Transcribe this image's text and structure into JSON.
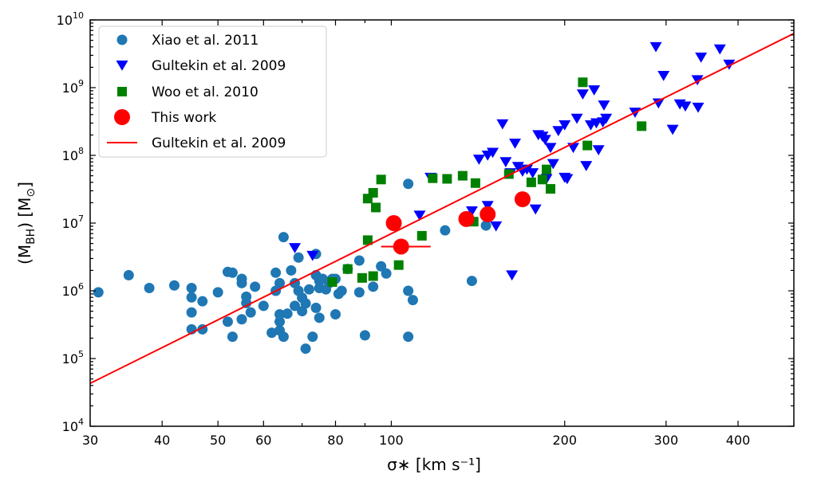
{
  "chart_data": {
    "type": "scatter",
    "xlabel": "σ∗ [km s⁻¹]",
    "ylabel": "(MBH) [M⊙]",
    "xscale": "log",
    "yscale": "log",
    "xlim": [
      30,
      500
    ],
    "ylim": [
      10000,
      10000000000
    ],
    "xticks": [
      30,
      40,
      50,
      60,
      80,
      100,
      200,
      300,
      400
    ],
    "xtick_labels": [
      "30",
      "40",
      "50",
      "60",
      "80",
      "100",
      "200",
      "300",
      "400"
    ],
    "yticks": [
      10000,
      100000,
      1000000,
      10000000,
      100000000,
      1000000000,
      10000000000
    ],
    "ytick_labels": [
      {
        "base": "10",
        "exp": "4"
      },
      {
        "base": "10",
        "exp": "5"
      },
      {
        "base": "10",
        "exp": "6"
      },
      {
        "base": "10",
        "exp": "7"
      },
      {
        "base": "10",
        "exp": "8"
      },
      {
        "base": "10",
        "exp": "9"
      },
      {
        "base": "10",
        "exp": "10"
      }
    ],
    "legend_position": "top-left",
    "series": [
      {
        "name": "Xiao et al. 2011",
        "marker": "circle",
        "color": "#1f77b4",
        "points": [
          [
            31,
            950000
          ],
          [
            35,
            1700000
          ],
          [
            38,
            1100000
          ],
          [
            42,
            1200000
          ],
          [
            45,
            1100000
          ],
          [
            45,
            800000
          ],
          [
            45,
            480000
          ],
          [
            45,
            270000
          ],
          [
            47,
            700000
          ],
          [
            47,
            270000
          ],
          [
            50,
            950000
          ],
          [
            52,
            1900000
          ],
          [
            52,
            350000
          ],
          [
            53,
            1850000
          ],
          [
            53,
            210000
          ],
          [
            55,
            1500000
          ],
          [
            55,
            1300000
          ],
          [
            55,
            380000
          ],
          [
            56,
            820000
          ],
          [
            56,
            660000
          ],
          [
            57,
            480000
          ],
          [
            58,
            1150000
          ],
          [
            60,
            600000
          ],
          [
            62,
            240000
          ],
          [
            63,
            1850000
          ],
          [
            63,
            1000000
          ],
          [
            64,
            1300000
          ],
          [
            64,
            450000
          ],
          [
            64,
            260000
          ],
          [
            64,
            350000
          ],
          [
            65,
            6200000
          ],
          [
            65,
            210000
          ],
          [
            66,
            460000
          ],
          [
            67,
            2000000
          ],
          [
            68,
            1300000
          ],
          [
            68,
            600000
          ],
          [
            69,
            3100000
          ],
          [
            69,
            1000000
          ],
          [
            70,
            790000
          ],
          [
            70,
            500000
          ],
          [
            71,
            650000
          ],
          [
            71,
            140000
          ],
          [
            72,
            1050000
          ],
          [
            73,
            210000
          ],
          [
            74,
            1700000
          ],
          [
            74,
            560000
          ],
          [
            74,
            3500000
          ],
          [
            75,
            1400000
          ],
          [
            75,
            1100000
          ],
          [
            75,
            400000
          ],
          [
            76,
            1500000
          ],
          [
            77,
            1050000
          ],
          [
            78,
            1300000
          ],
          [
            79,
            1500000
          ],
          [
            80,
            1500000
          ],
          [
            80,
            450000
          ],
          [
            81,
            900000
          ],
          [
            82,
            1000000
          ],
          [
            84,
            2100000
          ],
          [
            88,
            2800000
          ],
          [
            88,
            950000
          ],
          [
            90,
            220000
          ],
          [
            93,
            1150000
          ],
          [
            96,
            2300000
          ],
          [
            98,
            1800000
          ],
          [
            107,
            38000000
          ],
          [
            107,
            1000000
          ],
          [
            107,
            210000
          ],
          [
            109,
            730000
          ],
          [
            124,
            7800000
          ],
          [
            138,
            1400000
          ],
          [
            146,
            9200000
          ]
        ]
      },
      {
        "name": "Gultekin et al. 2009",
        "marker": "triangle-down",
        "color": "#0000ff",
        "points": [
          [
            68,
            4300000
          ],
          [
            73,
            3300000
          ],
          [
            112,
            13000000
          ],
          [
            117,
            47000000
          ],
          [
            138,
            15000000
          ],
          [
            142,
            87000000
          ],
          [
            147,
            100000000
          ],
          [
            147,
            18000000
          ],
          [
            150,
            110000000
          ],
          [
            152,
            9000000
          ],
          [
            156,
            290000000
          ],
          [
            158,
            80000000
          ],
          [
            161,
            55000000
          ],
          [
            162,
            1700000
          ],
          [
            164,
            150000000
          ],
          [
            166,
            68000000
          ],
          [
            169,
            58000000
          ],
          [
            172,
            62000000
          ],
          [
            176,
            55000000
          ],
          [
            178,
            16000000
          ],
          [
            180,
            200000000
          ],
          [
            183,
            190000000
          ],
          [
            185,
            170000000
          ],
          [
            186,
            45000000
          ],
          [
            189,
            130000000
          ],
          [
            191,
            75000000
          ],
          [
            195,
            230000000
          ],
          [
            200,
            47000000
          ],
          [
            200,
            280000000
          ],
          [
            202,
            45000000
          ],
          [
            207,
            130000000
          ],
          [
            210,
            350000000
          ],
          [
            215,
            800000000
          ],
          [
            218,
            70000000
          ],
          [
            222,
            280000000
          ],
          [
            225,
            920000000
          ],
          [
            227,
            300000000
          ],
          [
            229,
            120000000
          ],
          [
            233,
            310000000
          ],
          [
            234,
            550000000
          ],
          [
            236,
            350000000
          ],
          [
            265,
            430000000
          ],
          [
            288,
            4000000000
          ],
          [
            291,
            590000000
          ],
          [
            297,
            1500000000
          ],
          [
            308,
            240000000
          ],
          [
            317,
            570000000
          ],
          [
            324,
            530000000
          ],
          [
            340,
            1300000000
          ],
          [
            341,
            510000000
          ],
          [
            345,
            2800000000
          ],
          [
            372,
            3700000000
          ],
          [
            386,
            2200000000
          ]
        ]
      },
      {
        "name": "Woo et al. 2010",
        "marker": "square",
        "color": "#008000",
        "points": [
          [
            79,
            1350000
          ],
          [
            84,
            2100000
          ],
          [
            89,
            1550000
          ],
          [
            91,
            23000000
          ],
          [
            91,
            5600000
          ],
          [
            93,
            1650000
          ],
          [
            93,
            28000000
          ],
          [
            94,
            17000000
          ],
          [
            96,
            44000000
          ],
          [
            103,
            2400000
          ],
          [
            113,
            6500000
          ],
          [
            118,
            46000000
          ],
          [
            125,
            45000000
          ],
          [
            133,
            50000000
          ],
          [
            136,
            11500000
          ],
          [
            139,
            10500000
          ],
          [
            140,
            39000000
          ],
          [
            160,
            53000000
          ],
          [
            175,
            40000000
          ],
          [
            183,
            44000000
          ],
          [
            186,
            62000000
          ],
          [
            189,
            32000000
          ],
          [
            215,
            1200000000
          ],
          [
            219,
            140000000
          ],
          [
            272,
            270000000
          ]
        ]
      },
      {
        "name": "This work",
        "marker": "circle-large",
        "color": "#ff0000",
        "points": [
          [
            101,
            10000000
          ],
          [
            104,
            4500000
          ],
          [
            135,
            11500000
          ],
          [
            147,
            13500000
          ],
          [
            169,
            22500000
          ]
        ],
        "xerr": [
          [
            96,
            117
          ]
        ],
        "xerr_point": 1
      },
      {
        "name": "Gultekin et al. 2009",
        "marker": "line",
        "color": "#ff0000",
        "points": [
          [
            30,
            43000
          ],
          [
            500,
            6300000000
          ]
        ]
      }
    ]
  }
}
